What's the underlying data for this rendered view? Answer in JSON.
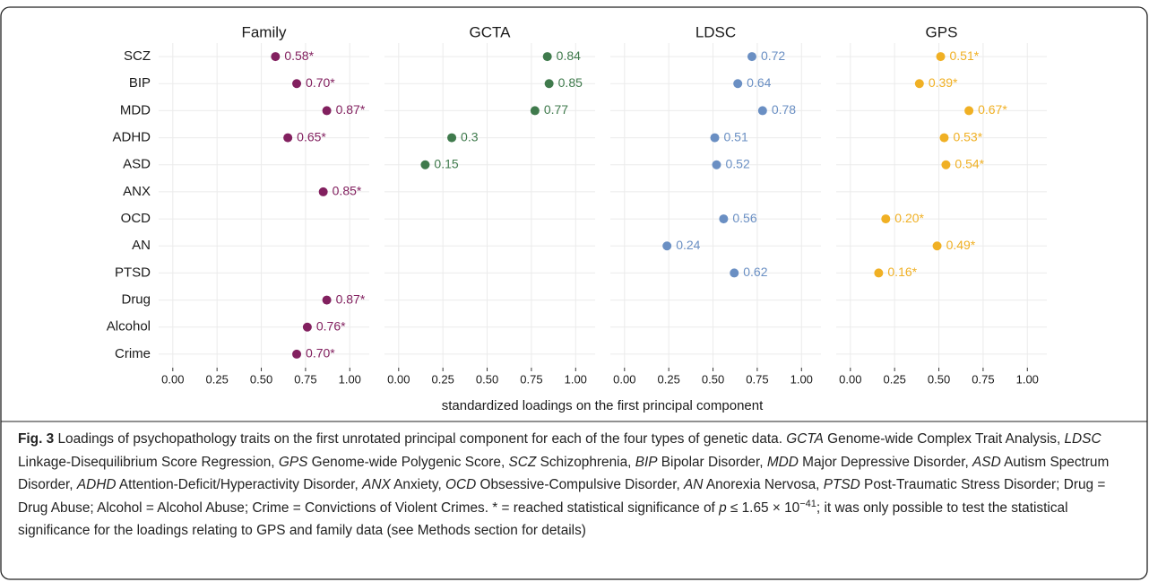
{
  "chart_data": {
    "type": "dot",
    "categories": [
      "SCZ",
      "BIP",
      "MDD",
      "ADHD",
      "ASD",
      "ANX",
      "OCD",
      "AN",
      "PTSD",
      "Drug",
      "Alcohol",
      "Crime"
    ],
    "x_label": "standardized loadings on the first principal component",
    "xlim": [
      -0.08,
      1.11
    ],
    "xticks": [
      {
        "value": 0,
        "label": "0.00"
      },
      {
        "value": 0.25,
        "label": "0.25"
      },
      {
        "value": 0.5,
        "label": "0.50"
      },
      {
        "value": 0.75,
        "label": "0.75"
      },
      {
        "value": 1,
        "label": "1.00"
      }
    ],
    "grid": true,
    "panels": [
      {
        "title": "Family",
        "color": "#82205f",
        "values": [
          0.58,
          0.7,
          0.87,
          0.65,
          null,
          0.85,
          null,
          null,
          null,
          0.87,
          0.76,
          0.7
        ],
        "value_labels": [
          "0.58*",
          "0.70*",
          "0.87*",
          "0.65*",
          null,
          "0.85*",
          null,
          null,
          null,
          "0.87*",
          "0.76*",
          "0.70*"
        ]
      },
      {
        "title": "GCTA",
        "color": "#3f7a4c",
        "values": [
          0.84,
          0.85,
          0.77,
          0.3,
          0.15,
          null,
          null,
          null,
          null,
          null,
          null,
          null
        ]
      },
      {
        "title": "LDSC",
        "color": "#6a8fc3",
        "values": [
          0.72,
          0.64,
          0.78,
          0.51,
          0.52,
          null,
          0.56,
          0.24,
          0.62,
          null,
          null,
          null
        ]
      },
      {
        "title": "GPS",
        "color": "#f0b024",
        "values": [
          0.51,
          0.39,
          0.67,
          0.53,
          0.54,
          null,
          0.2,
          0.49,
          0.16,
          null,
          null,
          null
        ],
        "value_labels": [
          "0.51*",
          "0.39*",
          "0.67*",
          "0.53*",
          "0.54*",
          null,
          "0.20*",
          "0.49*",
          "0.16*",
          null,
          null,
          null
        ]
      }
    ]
  },
  "caption": [
    {
      "text": "Fig. 3",
      "style": "bold"
    },
    " Loadings of psychopathology traits on the first unrotated principal component for each of the four types of genetic data. ",
    {
      "text": "GCTA",
      "style": "italic"
    },
    " Genome-wide Complex Trait Analysis, ",
    {
      "text": "LDSC",
      "style": "italic"
    },
    " Linkage-Disequilibrium Score Regression, ",
    {
      "text": "GPS",
      "style": "italic"
    },
    " Genome-wide Polygenic Score, ",
    {
      "text": "SCZ",
      "style": "italic"
    },
    " Schizophrenia, ",
    {
      "text": "BIP",
      "style": "italic"
    },
    " Bipolar Disorder, ",
    {
      "text": "MDD",
      "style": "italic"
    },
    " Major Depressive Disorder, ",
    {
      "text": "ASD",
      "style": "italic"
    },
    " Autism Spectrum Disorder, ",
    {
      "text": "ADHD",
      "style": "italic"
    },
    " Attention-Deficit/Hyperactivity Disorder, ",
    {
      "text": "ANX",
      "style": "italic"
    },
    " Anxiety, ",
    {
      "text": "OCD",
      "style": "italic"
    },
    " Obsessive-Compulsive Disorder, ",
    {
      "text": "AN",
      "style": "italic"
    },
    " Anorexia Nervosa, ",
    {
      "text": "PTSD",
      "style": "italic"
    },
    " Post-Traumatic Stress Disorder; Drug = Drug Abuse; Alcohol = Alcohol Abuse; Crime = Convictions of Violent Crimes. * = reached statistical significance of ",
    {
      "text": "p",
      "style": "italic"
    },
    " ≤ 1.65 × 10",
    {
      "text": "−41",
      "style": "sup"
    },
    "; it was only possible to test the statistical significance for the loadings relating to GPS and family data (see Methods section for details)"
  ]
}
